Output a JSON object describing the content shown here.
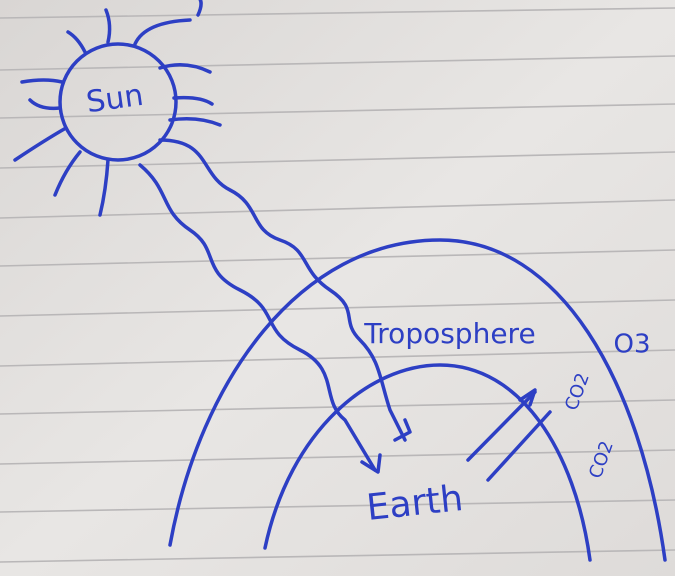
{
  "nodes": [
    {
      "label": "Sun"
    },
    {
      "label": "Troposphere"
    },
    {
      "label": "O3"
    },
    {
      "label": "Earth"
    },
    {
      "label": "CO2"
    },
    {
      "label": "CO2"
    }
  ]
}
